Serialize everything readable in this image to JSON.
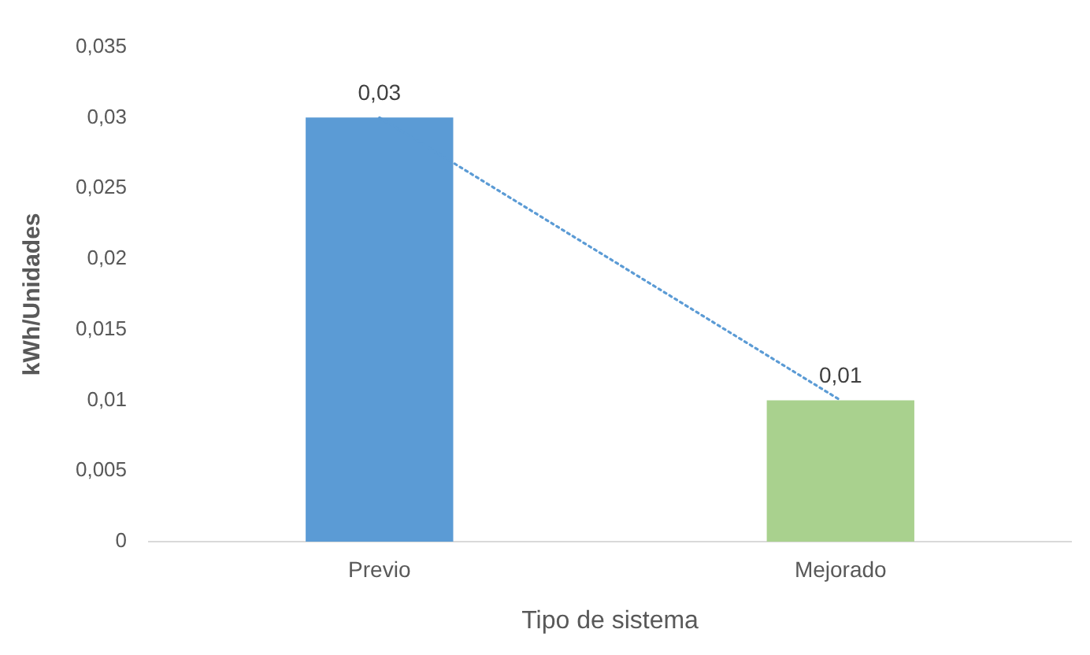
{
  "chart_data": {
    "type": "bar",
    "xlabel": "Tipo de sistema",
    "ylabel": "kWh/Unidades",
    "categories": [
      "Previo",
      "Mejorado"
    ],
    "series": [
      {
        "colors": [
          "#5b9bd5",
          "#a9d18e"
        ],
        "values": [
          0.03,
          0.01
        ],
        "value_labels": [
          "0,03",
          "0,01"
        ]
      },
      {
        "type": "line",
        "x": [
          "Previo",
          "Mejorado"
        ],
        "values": [
          0.03,
          0.01
        ],
        "color": "#5b9bd5",
        "line_style": "dotted",
        "marker": "none"
      }
    ],
    "ylim": [
      0,
      0.035
    ],
    "yticks": [
      {
        "value": 0,
        "label": "0"
      },
      {
        "value": 0.005,
        "label": "0,005"
      },
      {
        "value": 0.01,
        "label": "0,01"
      },
      {
        "value": 0.015,
        "label": "0,015"
      },
      {
        "value": 0.02,
        "label": "0,02"
      },
      {
        "value": 0.025,
        "label": "0,025"
      },
      {
        "value": 0.03,
        "label": "0,03"
      },
      {
        "value": 0.035,
        "label": "0,035"
      }
    ],
    "grid": false,
    "legend": false
  }
}
